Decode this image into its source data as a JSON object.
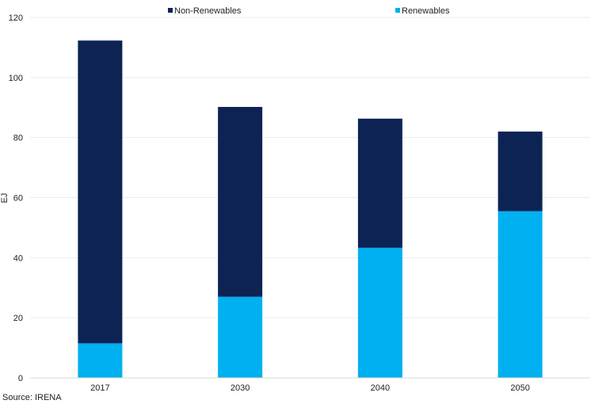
{
  "chart_data": {
    "type": "bar",
    "stacked": true,
    "categories": [
      "2017",
      "2030",
      "2040",
      "2050"
    ],
    "series": [
      {
        "name": "Renewables",
        "values": [
          11.5,
          27,
          43.3,
          55.5
        ],
        "color": "#00B0F0"
      },
      {
        "name": "Non-Renewables",
        "values": [
          100.8,
          63.2,
          43,
          26.5
        ],
        "color": "#0C2354"
      }
    ],
    "legend_order": [
      "Non-Renewables",
      "Renewables"
    ],
    "legend_position": "top",
    "ylabel": "EJ",
    "xlabel": "",
    "ylim": [
      0,
      120
    ],
    "yticks": [
      0,
      20,
      40,
      60,
      80,
      100,
      120
    ],
    "grid": true
  },
  "source": "Source: IRENA"
}
